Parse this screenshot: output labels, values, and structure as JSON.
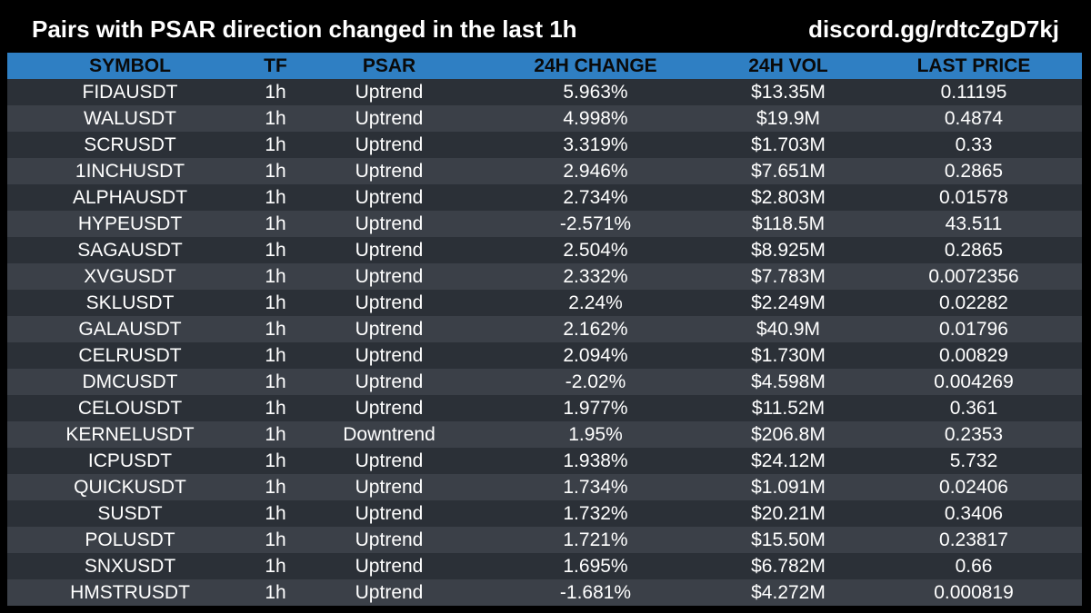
{
  "header": {
    "title": "Pairs with PSAR direction changed in the last 1h",
    "link": "discord.gg/rdtcZgD7kj"
  },
  "colors": {
    "header_bar": "#2f7fc3",
    "row_dark": "#2b3037",
    "row_light": "#3b4048",
    "background": "#000000"
  },
  "table": {
    "columns": [
      "SYMBOL",
      "TF",
      "PSAR",
      "24H CHANGE",
      "24H VOL",
      "LAST PRICE"
    ],
    "rows": [
      [
        "FIDAUSDT",
        "1h",
        "Uptrend",
        "5.963%",
        "$13.35M",
        "0.11195"
      ],
      [
        "WALUSDT",
        "1h",
        "Uptrend",
        "4.998%",
        "$19.9M",
        "0.4874"
      ],
      [
        "SCRUSDT",
        "1h",
        "Uptrend",
        "3.319%",
        "$1.703M",
        "0.33"
      ],
      [
        "1INCHUSDT",
        "1h",
        "Uptrend",
        "2.946%",
        "$7.651M",
        "0.2865"
      ],
      [
        "ALPHAUSDT",
        "1h",
        "Uptrend",
        "2.734%",
        "$2.803M",
        "0.01578"
      ],
      [
        "HYPEUSDT",
        "1h",
        "Uptrend",
        "-2.571%",
        "$118.5M",
        "43.511"
      ],
      [
        "SAGAUSDT",
        "1h",
        "Uptrend",
        "2.504%",
        "$8.925M",
        "0.2865"
      ],
      [
        "XVGUSDT",
        "1h",
        "Uptrend",
        "2.332%",
        "$7.783M",
        "0.0072356"
      ],
      [
        "SKLUSDT",
        "1h",
        "Uptrend",
        "2.24%",
        "$2.249M",
        "0.02282"
      ],
      [
        "GALAUSDT",
        "1h",
        "Uptrend",
        "2.162%",
        "$40.9M",
        "0.01796"
      ],
      [
        "CELRUSDT",
        "1h",
        "Uptrend",
        "2.094%",
        "$1.730M",
        "0.00829"
      ],
      [
        "DMCUSDT",
        "1h",
        "Uptrend",
        "-2.02%",
        "$4.598M",
        "0.004269"
      ],
      [
        "CELOUSDT",
        "1h",
        "Uptrend",
        "1.977%",
        "$11.52M",
        "0.361"
      ],
      [
        "KERNELUSDT",
        "1h",
        "Downtrend",
        "1.95%",
        "$206.8M",
        "0.2353"
      ],
      [
        "ICPUSDT",
        "1h",
        "Uptrend",
        "1.938%",
        "$24.12M",
        "5.732"
      ],
      [
        "QUICKUSDT",
        "1h",
        "Uptrend",
        "1.734%",
        "$1.091M",
        "0.02406"
      ],
      [
        "SUSDT",
        "1h",
        "Uptrend",
        "1.732%",
        "$20.21M",
        "0.3406"
      ],
      [
        "POLUSDT",
        "1h",
        "Uptrend",
        "1.721%",
        "$15.50M",
        "0.23817"
      ],
      [
        "SNXUSDT",
        "1h",
        "Uptrend",
        "1.695%",
        "$6.782M",
        "0.66"
      ],
      [
        "HMSTRUSDT",
        "1h",
        "Uptrend",
        "-1.681%",
        "$4.272M",
        "0.000819"
      ]
    ]
  }
}
